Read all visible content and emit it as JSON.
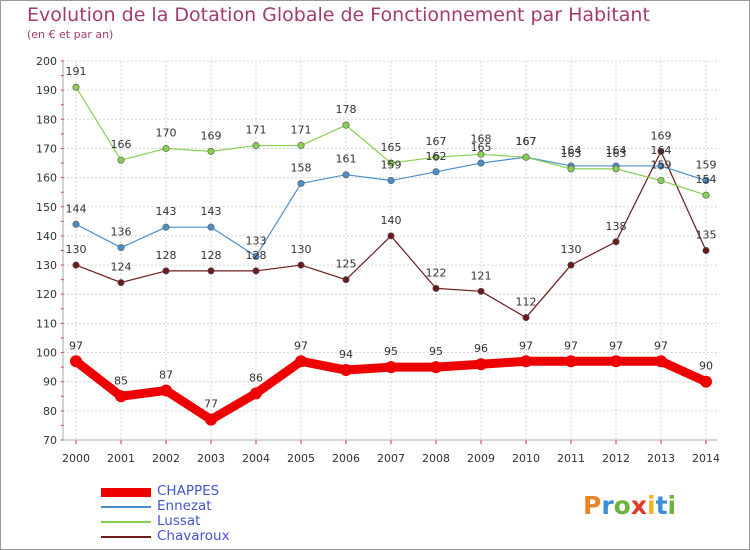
{
  "title": "Evolution de la Dotation Globale de Fonctionnement par Habitant",
  "subtitle": "(en € et par an)",
  "logo": {
    "letters": [
      "P",
      "r",
      "o",
      "x",
      "i",
      "t",
      "i"
    ],
    "colors": [
      "#e8852a",
      "#3a8fd6",
      "#6cb33f",
      "#e23a2a",
      "#f2b320",
      "#3a8fd6",
      "#6cb33f"
    ]
  },
  "chart_data": {
    "type": "line",
    "title": "Evolution de la Dotation Globale de Fonctionnement par Habitant",
    "subtitle": "(en € et par an)",
    "xlabel": "",
    "ylabel": "",
    "x": [
      "2000",
      "2001",
      "2002",
      "2003",
      "2004",
      "2005",
      "2006",
      "2007",
      "2008",
      "2009",
      "2010",
      "2011",
      "2012",
      "2013",
      "2014"
    ],
    "ylim": [
      70,
      200
    ],
    "yticks": [
      70,
      80,
      90,
      100,
      110,
      120,
      130,
      140,
      150,
      160,
      170,
      180,
      190,
      200
    ],
    "grid": true,
    "legend_position": "bottom-left",
    "series": [
      {
        "name": "CHAPPES",
        "color": "#ee0000",
        "values": [
          97,
          85,
          87,
          77,
          86,
          97,
          94,
          95,
          95,
          96,
          97,
          97,
          97,
          97,
          90
        ]
      },
      {
        "name": "Ennezat",
        "color": "#4a8fc9",
        "values": [
          144,
          136,
          143,
          143,
          133,
          158,
          161,
          159,
          162,
          165,
          167,
          164,
          164,
          164,
          159
        ]
      },
      {
        "name": "Lussat",
        "color": "#88d050",
        "values": [
          191,
          166,
          170,
          169,
          171,
          171,
          178,
          165,
          167,
          168,
          167,
          163,
          163,
          159,
          154
        ]
      },
      {
        "name": "Chavaroux",
        "color": "#6b1b1b",
        "values": [
          130,
          124,
          128,
          128,
          128,
          130,
          125,
          140,
          122,
          121,
          112,
          130,
          138,
          169,
          135
        ]
      }
    ]
  }
}
